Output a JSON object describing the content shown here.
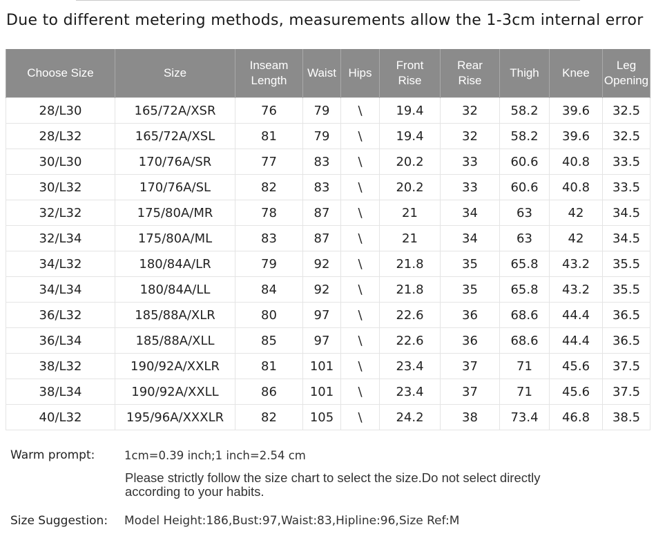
{
  "notice": "Due to different metering methods, measurements allow the 1-3cm internal error",
  "table": {
    "headers": [
      [
        "Choose Size"
      ],
      [
        "Size"
      ],
      [
        "Inseam",
        "Length"
      ],
      [
        "Waist"
      ],
      [
        "Hips"
      ],
      [
        "Front",
        "Rise"
      ],
      [
        "Rear",
        "Rise"
      ],
      [
        "Thigh"
      ],
      [
        "Knee"
      ],
      [
        "Leg",
        "Opening"
      ]
    ],
    "rows": [
      [
        "28/L30",
        "165/72A/XSR",
        "76",
        "79",
        "\\",
        "19.4",
        "32",
        "58.2",
        "39.6",
        "32.5"
      ],
      [
        "28/L32",
        "165/72A/XSL",
        "81",
        "79",
        "\\",
        "19.4",
        "32",
        "58.2",
        "39.6",
        "32.5"
      ],
      [
        "30/L30",
        "170/76A/SR",
        "77",
        "83",
        "\\",
        "20.2",
        "33",
        "60.6",
        "40.8",
        "33.5"
      ],
      [
        "30/L32",
        "170/76A/SL",
        "82",
        "83",
        "\\",
        "20.2",
        "33",
        "60.6",
        "40.8",
        "33.5"
      ],
      [
        "32/L32",
        "175/80A/MR",
        "78",
        "87",
        "\\",
        "21",
        "34",
        "63",
        "42",
        "34.5"
      ],
      [
        "32/L34",
        "175/80A/ML",
        "83",
        "87",
        "\\",
        "21",
        "34",
        "63",
        "42",
        "34.5"
      ],
      [
        "34/L32",
        "180/84A/LR",
        "79",
        "92",
        "\\",
        "21.8",
        "35",
        "65.8",
        "43.2",
        "35.5"
      ],
      [
        "34/L34",
        "180/84A/LL",
        "84",
        "92",
        "\\",
        "21.8",
        "35",
        "65.8",
        "43.2",
        "35.5"
      ],
      [
        "36/L32",
        "185/88A/XLR",
        "80",
        "97",
        "\\",
        "22.6",
        "36",
        "68.6",
        "44.4",
        "36.5"
      ],
      [
        "36/L34",
        "185/88A/XLL",
        "85",
        "97",
        "\\",
        "22.6",
        "36",
        "68.6",
        "44.4",
        "36.5"
      ],
      [
        "38/L32",
        "190/92A/XXLR",
        "81",
        "101",
        "\\",
        "23.4",
        "37",
        "71",
        "45.6",
        "37.5"
      ],
      [
        "38/L34",
        "190/92A/XXLL",
        "86",
        "101",
        "\\",
        "23.4",
        "37",
        "71",
        "45.6",
        "37.5"
      ],
      [
        "40/L32",
        "195/96A/XXXLR",
        "82",
        "105",
        "\\",
        "24.2",
        "38",
        "73.4",
        "46.8",
        "38.5"
      ]
    ]
  },
  "footer": {
    "warm_label": "Warm prompt:",
    "conversion": "1cm=0.39 inch;1 inch=2.54 cm",
    "instruction_line1": "Please strictly follow the size chart  to select the size.Do not select directly",
    "instruction_line2": "according to your habits.",
    "suggestion_label": "Size Suggestion:",
    "suggestion": "Model Height:186,Bust:97,Waist:83,Hipline:96,Size Ref:M"
  },
  "colors": {
    "header_bg": "#8b8b8b",
    "header_text": "#ffffff",
    "grid": "#e4e4e4"
  }
}
